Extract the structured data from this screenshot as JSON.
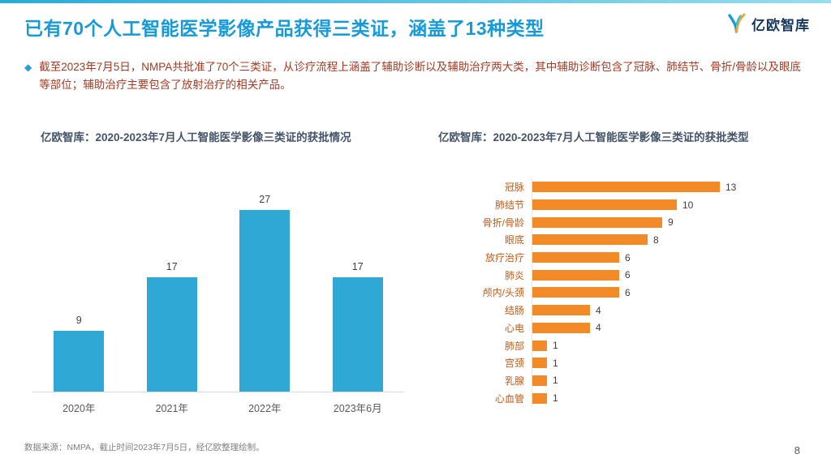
{
  "header": {
    "title": "已有70个人工智能医学影像产品获得三类证，涵盖了13种类型",
    "logo_text": "亿欧智库"
  },
  "intro": {
    "bullet": "◆",
    "text": "截至2023年7月5日，NMPA共批准了70个三类证，从诊疗流程上涵盖了辅助诊断以及辅助治疗两大类，其中辅助诊断包含了冠脉、肺结节、骨折/骨龄以及眼底等部位；辅助治疗主要包含了放射治疗的相关产品。"
  },
  "colors": {
    "title_blue": "#189ad6",
    "body_red": "#a23b22",
    "chart_title": "#44546a",
    "cyan_bar": "#2fa8d5",
    "orange_bar": "#f28b27"
  },
  "chart_data": [
    {
      "type": "bar",
      "orientation": "vertical",
      "title": "亿欧智库：2020-2023年7月人工智能医学影像三类证的获批情况",
      "categories": [
        "2020年",
        "2021年",
        "2022年",
        "2023年6月"
      ],
      "values": [
        9,
        17,
        27,
        17
      ],
      "bar_color": "#2fa8d5",
      "ylim": [
        0,
        30
      ],
      "grid": false,
      "data_labels": true
    },
    {
      "type": "bar",
      "orientation": "horizontal",
      "title": "亿欧智库：2020-2023年7月人工智能医学影像三类证的获批类型",
      "categories": [
        "冠脉",
        "肺结节",
        "骨折/骨龄",
        "眼底",
        "放疗治疗",
        "肺炎",
        "颅内/头颈",
        "结肠",
        "心电",
        "肺部",
        "宫颈",
        "乳腺",
        "心血管"
      ],
      "values": [
        13,
        10,
        9,
        8,
        6,
        6,
        6,
        4,
        4,
        1,
        1,
        1,
        1
      ],
      "bar_color": "#f28b27",
      "xlim": [
        0,
        14
      ],
      "grid": false,
      "data_labels": true
    }
  ],
  "footer": {
    "source": "数据来源：NMPA，截止时间2023年7月5日，经亿欧整理绘制。",
    "page_number": "8"
  }
}
